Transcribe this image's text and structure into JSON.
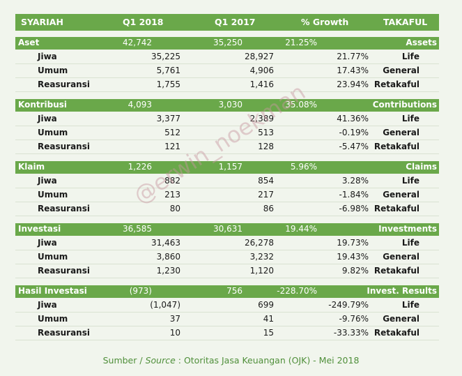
{
  "header": {
    "syariah": "SYARIAH",
    "q1_2018": "Q1 2018",
    "q1_2017": "Q1 2017",
    "growth": "% Growth",
    "takaful": "TAKAFUL"
  },
  "sections": [
    {
      "title": "Aset",
      "q18": "42,742",
      "q17": "35,250",
      "growth": "21.25%",
      "en": "Assets",
      "rows": [
        {
          "label": "Jiwa",
          "q18": "35,225",
          "q17": "28,927",
          "growth": "21.77%",
          "en": "Life"
        },
        {
          "label": "Umum",
          "q18": "5,761",
          "q17": "4,906",
          "growth": "17.43%",
          "en": "General"
        },
        {
          "label": "Reasuransi",
          "q18": "1,755",
          "q17": "1,416",
          "growth": "23.94%",
          "en": "Retakaful"
        }
      ]
    },
    {
      "title": "Kontribusi",
      "q18": "4,093",
      "q17": "3,030",
      "growth": "35.08%",
      "en": "Contributions",
      "rows": [
        {
          "label": "Jiwa",
          "q18": "3,377",
          "q17": "2,389",
          "growth": "41.36%",
          "en": "Life"
        },
        {
          "label": "Umum",
          "q18": "512",
          "q17": "513",
          "growth": "-0.19%",
          "en": "General"
        },
        {
          "label": "Reasuransi",
          "q18": "121",
          "q17": "128",
          "growth": "-5.47%",
          "en": "Retakaful"
        }
      ]
    },
    {
      "title": "Klaim",
      "q18": "1,226",
      "q17": "1,157",
      "growth": "5.96%",
      "en": "Claims",
      "rows": [
        {
          "label": "Jiwa",
          "q18": "882",
          "q17": "854",
          "growth": "3.28%",
          "en": "Life"
        },
        {
          "label": "Umum",
          "q18": "213",
          "q17": "217",
          "growth": "-1.84%",
          "en": "General"
        },
        {
          "label": "Reasuransi",
          "q18": "80",
          "q17": "86",
          "growth": "-6.98%",
          "en": "Retakaful"
        }
      ]
    },
    {
      "title": "Investasi",
      "q18": "36,585",
      "q17": "30,631",
      "growth": "19.44%",
      "en": "Investments",
      "rows": [
        {
          "label": "Jiwa",
          "q18": "31,463",
          "q17": "26,278",
          "growth": "19.73%",
          "en": "Life"
        },
        {
          "label": "Umum",
          "q18": "3,860",
          "q17": "3,232",
          "growth": "19.43%",
          "en": "General"
        },
        {
          "label": "Reasuransi",
          "q18": "1,230",
          "q17": "1,120",
          "growth": "9.82%",
          "en": "Retakaful"
        }
      ]
    },
    {
      "title": "Hasil Investasi",
      "q18": "(973)",
      "q17": "756",
      "growth": "-228.70%",
      "en": "Invest. Results",
      "rows": [
        {
          "label": "Jiwa",
          "q18": "(1,047)",
          "q17": "699",
          "growth": "-249.79%",
          "en": "Life"
        },
        {
          "label": "Umum",
          "q18": "37",
          "q17": "41",
          "growth": "-9.76%",
          "en": "General"
        },
        {
          "label": "Reasuransi",
          "q18": "10",
          "q17": "15",
          "growth": "-33.33%",
          "en": "Retakaful"
        }
      ]
    }
  ],
  "watermark": "@erwin_noekman",
  "source": {
    "prefix": "Sumber / ",
    "italic": "Source",
    "rest": " : Otoritas Jasa Keuangan (OJK) - Mei 2018"
  },
  "colors": {
    "bar_green": "#6aa84a",
    "background": "#f1f5ed",
    "source_text": "#4f8f3a"
  }
}
